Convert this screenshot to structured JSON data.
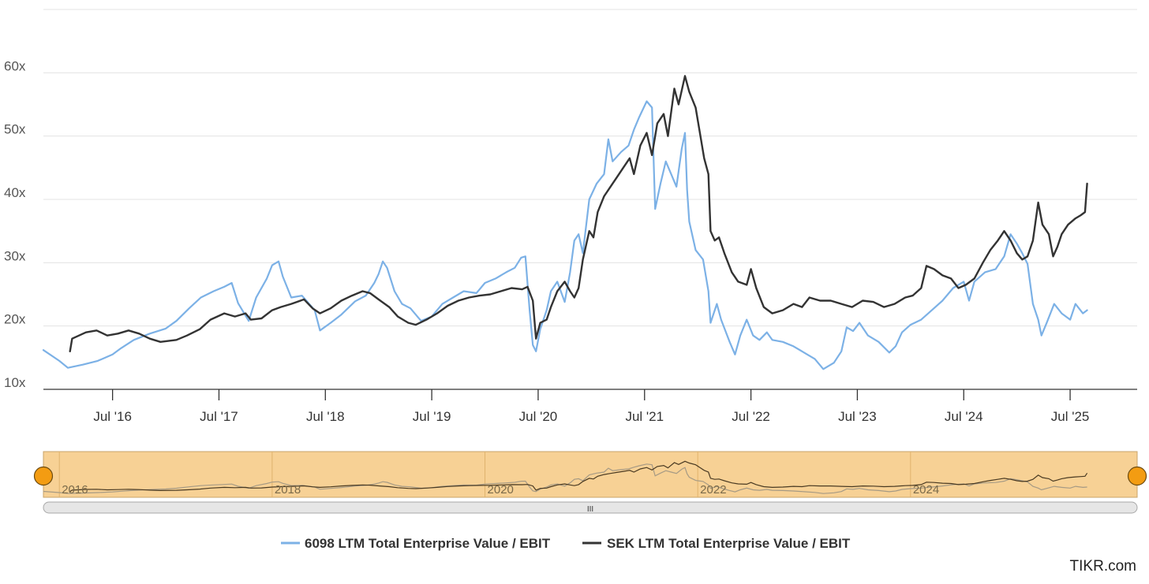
{
  "chart_data": {
    "type": "line",
    "title": "",
    "xlabel": "",
    "ylabel": "",
    "ylim": [
      10,
      70
    ],
    "xlim": [
      2015.35,
      2025.63
    ],
    "grid": true,
    "y_ticks": [
      {
        "value": 10,
        "label": "10x"
      },
      {
        "value": 20,
        "label": "20x"
      },
      {
        "value": 30,
        "label": "30x"
      },
      {
        "value": 40,
        "label": "40x"
      },
      {
        "value": 50,
        "label": "50x"
      },
      {
        "value": 60,
        "label": "60x"
      }
    ],
    "x_ticks": [
      {
        "value": 2016.0,
        "label": "Jul '16"
      },
      {
        "value": 2017.0,
        "label": "Jul '17"
      },
      {
        "value": 2018.0,
        "label": "Jul '18"
      },
      {
        "value": 2019.0,
        "label": "Jul '19"
      },
      {
        "value": 2020.0,
        "label": "Jul '20"
      },
      {
        "value": 2021.0,
        "label": "Jul '21"
      },
      {
        "value": 2022.0,
        "label": "Jul '22"
      },
      {
        "value": 2023.0,
        "label": "Jul '23"
      },
      {
        "value": 2024.0,
        "label": "Jul '24"
      },
      {
        "value": 2025.0,
        "label": "Jul '25"
      }
    ],
    "navigator_labels": [
      {
        "value": 2015.5,
        "label": "2016"
      },
      {
        "value": 2017.5,
        "label": "2018"
      },
      {
        "value": 2019.5,
        "label": "2020"
      },
      {
        "value": 2021.5,
        "label": "2022"
      },
      {
        "value": 2023.5,
        "label": "2024"
      }
    ],
    "series": [
      {
        "name": "6098 LTM Total Enterprise Value / EBIT",
        "color": "#7cb1e6",
        "points": [
          [
            2015.35,
            16.2
          ],
          [
            2015.5,
            14.5
          ],
          [
            2015.58,
            13.4
          ],
          [
            2015.72,
            13.9
          ],
          [
            2015.86,
            14.5
          ],
          [
            2016.0,
            15.5
          ],
          [
            2016.08,
            16.5
          ],
          [
            2016.2,
            17.8
          ],
          [
            2016.35,
            18.8
          ],
          [
            2016.5,
            19.6
          ],
          [
            2016.6,
            20.8
          ],
          [
            2016.72,
            22.8
          ],
          [
            2016.83,
            24.5
          ],
          [
            2016.95,
            25.5
          ],
          [
            2017.05,
            26.2
          ],
          [
            2017.12,
            26.8
          ],
          [
            2017.18,
            23.6
          ],
          [
            2017.28,
            20.8
          ],
          [
            2017.35,
            24.5
          ],
          [
            2017.45,
            27.5
          ],
          [
            2017.5,
            29.6
          ],
          [
            2017.56,
            30.2
          ],
          [
            2017.6,
            27.8
          ],
          [
            2017.68,
            24.5
          ],
          [
            2017.78,
            24.8
          ],
          [
            2017.9,
            22.5
          ],
          [
            2017.95,
            19.3
          ],
          [
            2018.05,
            20.5
          ],
          [
            2018.15,
            21.8
          ],
          [
            2018.28,
            23.9
          ],
          [
            2018.38,
            24.8
          ],
          [
            2018.46,
            26.8
          ],
          [
            2018.5,
            28.2
          ],
          [
            2018.54,
            30.2
          ],
          [
            2018.58,
            29.2
          ],
          [
            2018.65,
            25.5
          ],
          [
            2018.72,
            23.5
          ],
          [
            2018.8,
            22.8
          ],
          [
            2018.9,
            20.8
          ],
          [
            2019.0,
            21.5
          ],
          [
            2019.1,
            23.5
          ],
          [
            2019.2,
            24.5
          ],
          [
            2019.3,
            25.5
          ],
          [
            2019.42,
            25.2
          ],
          [
            2019.5,
            26.8
          ],
          [
            2019.6,
            27.5
          ],
          [
            2019.7,
            28.5
          ],
          [
            2019.78,
            29.2
          ],
          [
            2019.84,
            30.8
          ],
          [
            2019.88,
            31.0
          ],
          [
            2019.92,
            22.5
          ],
          [
            2019.95,
            17.0
          ],
          [
            2019.98,
            16.0
          ],
          [
            2020.02,
            19.5
          ],
          [
            2020.08,
            22.5
          ],
          [
            2020.12,
            25.5
          ],
          [
            2020.18,
            27.0
          ],
          [
            2020.25,
            23.8
          ],
          [
            2020.3,
            28.5
          ],
          [
            2020.34,
            33.5
          ],
          [
            2020.38,
            34.5
          ],
          [
            2020.42,
            31.5
          ],
          [
            2020.48,
            40.0
          ],
          [
            2020.55,
            42.5
          ],
          [
            2020.62,
            44.0
          ],
          [
            2020.66,
            49.5
          ],
          [
            2020.7,
            46.0
          ],
          [
            2020.78,
            47.5
          ],
          [
            2020.85,
            48.5
          ],
          [
            2020.9,
            51.0
          ],
          [
            2020.95,
            53.0
          ],
          [
            2021.02,
            55.5
          ],
          [
            2021.07,
            54.5
          ],
          [
            2021.1,
            38.5
          ],
          [
            2021.15,
            42.5
          ],
          [
            2021.2,
            46.0
          ],
          [
            2021.25,
            44.0
          ],
          [
            2021.3,
            42.0
          ],
          [
            2021.35,
            48.0
          ],
          [
            2021.38,
            50.5
          ],
          [
            2021.4,
            41.5
          ],
          [
            2021.42,
            36.5
          ],
          [
            2021.48,
            32.0
          ],
          [
            2021.55,
            30.5
          ],
          [
            2021.6,
            25.5
          ],
          [
            2021.62,
            20.5
          ],
          [
            2021.68,
            23.5
          ],
          [
            2021.72,
            21.0
          ],
          [
            2021.8,
            17.5
          ],
          [
            2021.85,
            15.5
          ],
          [
            2021.9,
            18.5
          ],
          [
            2021.96,
            21.0
          ],
          [
            2022.02,
            18.5
          ],
          [
            2022.08,
            17.8
          ],
          [
            2022.15,
            19.0
          ],
          [
            2022.2,
            17.8
          ],
          [
            2022.3,
            17.5
          ],
          [
            2022.4,
            16.8
          ],
          [
            2022.5,
            15.8
          ],
          [
            2022.6,
            14.8
          ],
          [
            2022.68,
            13.2
          ],
          [
            2022.78,
            14.2
          ],
          [
            2022.85,
            16.0
          ],
          [
            2022.9,
            19.8
          ],
          [
            2022.96,
            19.2
          ],
          [
            2023.02,
            20.5
          ],
          [
            2023.1,
            18.5
          ],
          [
            2023.2,
            17.5
          ],
          [
            2023.3,
            15.8
          ],
          [
            2023.36,
            16.8
          ],
          [
            2023.42,
            19.0
          ],
          [
            2023.5,
            20.2
          ],
          [
            2023.6,
            21.0
          ],
          [
            2023.7,
            22.5
          ],
          [
            2023.8,
            24.0
          ],
          [
            2023.9,
            26.0
          ],
          [
            2024.0,
            27.0
          ],
          [
            2024.05,
            24.0
          ],
          [
            2024.1,
            27.0
          ],
          [
            2024.2,
            28.5
          ],
          [
            2024.3,
            29.0
          ],
          [
            2024.38,
            31.0
          ],
          [
            2024.44,
            34.5
          ],
          [
            2024.5,
            33.0
          ],
          [
            2024.55,
            31.5
          ],
          [
            2024.6,
            29.8
          ],
          [
            2024.65,
            23.5
          ],
          [
            2024.7,
            21.0
          ],
          [
            2024.73,
            18.5
          ],
          [
            2024.78,
            20.5
          ],
          [
            2024.85,
            23.5
          ],
          [
            2024.92,
            22.0
          ],
          [
            2025.0,
            21.0
          ],
          [
            2025.05,
            23.5
          ],
          [
            2025.12,
            22.0
          ],
          [
            2025.16,
            22.5
          ]
        ]
      },
      {
        "name": "SEK LTM Total Enterprise Value / EBIT",
        "color": "#333333",
        "points": [
          [
            2015.6,
            16.0
          ],
          [
            2015.62,
            18.0
          ],
          [
            2015.75,
            19.0
          ],
          [
            2015.85,
            19.3
          ],
          [
            2015.95,
            18.5
          ],
          [
            2016.05,
            18.8
          ],
          [
            2016.15,
            19.3
          ],
          [
            2016.25,
            18.8
          ],
          [
            2016.35,
            18.0
          ],
          [
            2016.45,
            17.5
          ],
          [
            2016.6,
            17.8
          ],
          [
            2016.7,
            18.5
          ],
          [
            2016.82,
            19.5
          ],
          [
            2016.92,
            21.0
          ],
          [
            2017.05,
            22.0
          ],
          [
            2017.15,
            21.5
          ],
          [
            2017.25,
            22.0
          ],
          [
            2017.3,
            21.0
          ],
          [
            2017.4,
            21.2
          ],
          [
            2017.5,
            22.5
          ],
          [
            2017.58,
            23.0
          ],
          [
            2017.68,
            23.5
          ],
          [
            2017.8,
            24.2
          ],
          [
            2017.88,
            22.8
          ],
          [
            2017.95,
            22.0
          ],
          [
            2018.05,
            22.8
          ],
          [
            2018.15,
            24.0
          ],
          [
            2018.25,
            24.8
          ],
          [
            2018.35,
            25.5
          ],
          [
            2018.42,
            25.2
          ],
          [
            2018.5,
            24.2
          ],
          [
            2018.6,
            23.0
          ],
          [
            2018.68,
            21.5
          ],
          [
            2018.78,
            20.5
          ],
          [
            2018.85,
            20.2
          ],
          [
            2018.95,
            21.0
          ],
          [
            2019.05,
            22.0
          ],
          [
            2019.15,
            23.2
          ],
          [
            2019.25,
            24.0
          ],
          [
            2019.35,
            24.5
          ],
          [
            2019.45,
            24.8
          ],
          [
            2019.55,
            25.0
          ],
          [
            2019.65,
            25.5
          ],
          [
            2019.75,
            26.0
          ],
          [
            2019.85,
            25.8
          ],
          [
            2019.9,
            26.2
          ],
          [
            2019.95,
            24.0
          ],
          [
            2019.98,
            18.0
          ],
          [
            2020.02,
            20.5
          ],
          [
            2020.08,
            21.0
          ],
          [
            2020.12,
            23.0
          ],
          [
            2020.18,
            25.5
          ],
          [
            2020.25,
            27.0
          ],
          [
            2020.3,
            25.5
          ],
          [
            2020.34,
            24.5
          ],
          [
            2020.38,
            26.0
          ],
          [
            2020.42,
            30.5
          ],
          [
            2020.48,
            35.0
          ],
          [
            2020.52,
            34.0
          ],
          [
            2020.56,
            38.0
          ],
          [
            2020.62,
            40.5
          ],
          [
            2020.68,
            42.0
          ],
          [
            2020.74,
            43.5
          ],
          [
            2020.8,
            45.0
          ],
          [
            2020.86,
            46.5
          ],
          [
            2020.9,
            44.0
          ],
          [
            2020.96,
            48.5
          ],
          [
            2021.02,
            50.5
          ],
          [
            2021.07,
            47.0
          ],
          [
            2021.12,
            52.0
          ],
          [
            2021.18,
            53.5
          ],
          [
            2021.22,
            50.0
          ],
          [
            2021.28,
            57.5
          ],
          [
            2021.32,
            55.0
          ],
          [
            2021.38,
            59.5
          ],
          [
            2021.42,
            57.0
          ],
          [
            2021.48,
            54.5
          ],
          [
            2021.52,
            50.5
          ],
          [
            2021.56,
            46.5
          ],
          [
            2021.6,
            44.0
          ],
          [
            2021.62,
            35.0
          ],
          [
            2021.66,
            33.5
          ],
          [
            2021.7,
            34.0
          ],
          [
            2021.75,
            31.5
          ],
          [
            2021.82,
            28.5
          ],
          [
            2021.88,
            27.0
          ],
          [
            2021.96,
            26.5
          ],
          [
            2022.0,
            29.0
          ],
          [
            2022.05,
            26.0
          ],
          [
            2022.12,
            23.0
          ],
          [
            2022.2,
            22.0
          ],
          [
            2022.3,
            22.5
          ],
          [
            2022.4,
            23.5
          ],
          [
            2022.48,
            23.0
          ],
          [
            2022.55,
            24.5
          ],
          [
            2022.65,
            24.0
          ],
          [
            2022.75,
            24.0
          ],
          [
            2022.85,
            23.5
          ],
          [
            2022.95,
            23.0
          ],
          [
            2023.05,
            24.0
          ],
          [
            2023.15,
            23.8
          ],
          [
            2023.25,
            23.0
          ],
          [
            2023.35,
            23.5
          ],
          [
            2023.45,
            24.5
          ],
          [
            2023.52,
            24.8
          ],
          [
            2023.6,
            26.0
          ],
          [
            2023.65,
            29.5
          ],
          [
            2023.72,
            29.0
          ],
          [
            2023.8,
            28.0
          ],
          [
            2023.88,
            27.5
          ],
          [
            2023.95,
            26.0
          ],
          [
            2024.02,
            26.5
          ],
          [
            2024.1,
            27.5
          ],
          [
            2024.18,
            30.0
          ],
          [
            2024.25,
            32.0
          ],
          [
            2024.32,
            33.5
          ],
          [
            2024.38,
            35.0
          ],
          [
            2024.44,
            33.5
          ],
          [
            2024.5,
            31.5
          ],
          [
            2024.55,
            30.5
          ],
          [
            2024.6,
            31.0
          ],
          [
            2024.65,
            33.5
          ],
          [
            2024.7,
            39.5
          ],
          [
            2024.74,
            36.0
          ],
          [
            2024.8,
            34.5
          ],
          [
            2024.84,
            31.0
          ],
          [
            2024.88,
            32.5
          ],
          [
            2024.92,
            34.5
          ],
          [
            2024.98,
            36.0
          ],
          [
            2025.05,
            37.0
          ],
          [
            2025.1,
            37.5
          ],
          [
            2025.14,
            38.0
          ],
          [
            2025.16,
            42.5
          ]
        ]
      }
    ],
    "legend_position": "bottom-center"
  },
  "credit": "TIKR.com",
  "navigator": {
    "handle_icon_label": "III"
  }
}
